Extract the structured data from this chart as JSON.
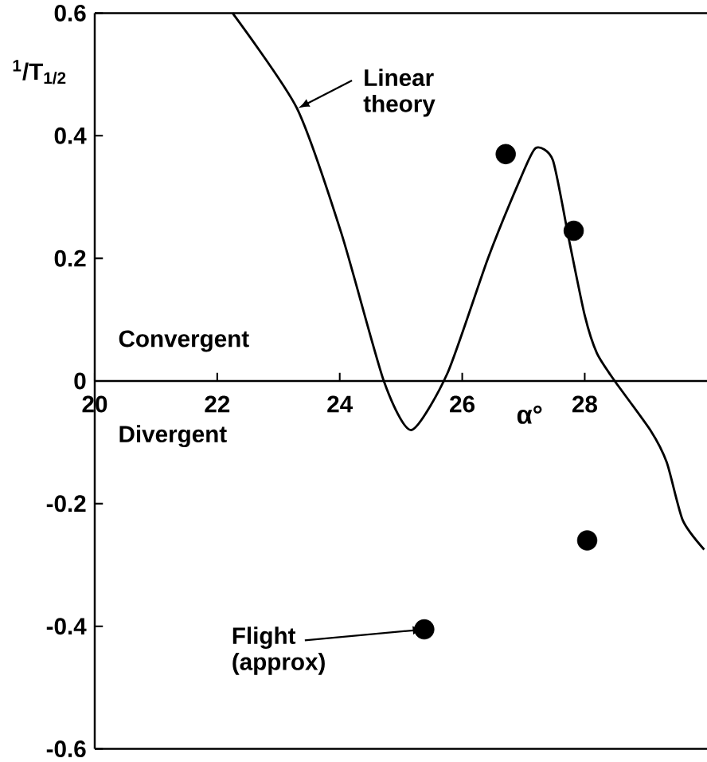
{
  "chart_data": {
    "type": "line",
    "ylabel": "$^{1}$/T$_{1/2}$",
    "xlabel": "α°",
    "xlim": [
      20,
      30
    ],
    "xticks": [
      20,
      22,
      24,
      26,
      28
    ],
    "ylim": [
      -0.6,
      0.6
    ],
    "yticks": [
      -0.6,
      -0.4,
      -0.2,
      0,
      0.2,
      0.4,
      0.6
    ],
    "grid": false,
    "annotations": [
      "Convergent",
      "Divergent",
      {
        "text": "Linear theory",
        "x": 23.3,
        "y": 0.445
      },
      {
        "text": "Flight (approx)",
        "x": 25.38,
        "y": -0.405
      }
    ],
    "series": [
      {
        "color": "#000000",
        "marker": "none",
        "line_style": "solid",
        "x": [
          22.25,
          23.3,
          24.03,
          24.72,
          25.17,
          25.76,
          26.42,
          26.95,
          27.2,
          27.48,
          27.75,
          28.0,
          28.2,
          28.49,
          29.07,
          29.34,
          29.6,
          29.95
        ],
        "values": [
          0.6,
          0.445,
          0.24,
          0.0,
          -0.08,
          0.013,
          0.2,
          0.33,
          0.38,
          0.36,
          0.227,
          0.107,
          0.045,
          0.0,
          -0.08,
          -0.133,
          -0.227,
          -0.275
        ]
      },
      {
        "type": "scatter",
        "color": "#000000",
        "marker": "circle",
        "x": [
          26.71,
          27.82,
          28.04,
          25.38
        ],
        "values": [
          0.37,
          0.245,
          -0.26,
          -0.405
        ]
      }
    ]
  }
}
